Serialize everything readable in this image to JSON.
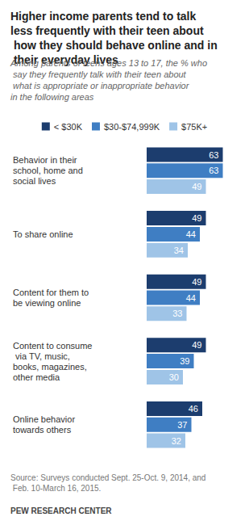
{
  "chart_data": {
    "type": "bar",
    "orientation": "horizontal",
    "title": "Higher income parents tend to talk less frequently with their teen about how they should behave online and in their everyday lives",
    "subtitle": "Among parents of teens ages 13 to 17, the % who say they frequently talk with their teen about what is appropriate or inappropriate behavior in the following areas",
    "annotations": [
      "Source: Surveys conducted Sept. 25-Oct. 9, 2014, and Feb. 10-March 16, 2015.",
      "PEW RESEARCH CENTER"
    ],
    "categories": [
      "Behavior in their school, home and social lives",
      "To share online",
      "Content for them to be viewing online",
      "Content to consume via TV, music, books, magazines, other media",
      "Online behavior towards others"
    ],
    "series": [
      {
        "name": "< $30K",
        "color": "#1c3d6e",
        "values": [
          63,
          49,
          49,
          49,
          46
        ]
      },
      {
        "name": "$30-$74,999K",
        "color": "#3f7ec3",
        "values": [
          63,
          44,
          44,
          39,
          37
        ]
      },
      {
        "name": "$75K+",
        "color": "#9fc4e7",
        "values": [
          49,
          34,
          33,
          30,
          32
        ]
      }
    ],
    "xlim": [
      0,
      70
    ],
    "grid": false,
    "legend": "top",
    "data_labels": true,
    "tick_labels": "y"
  }
}
